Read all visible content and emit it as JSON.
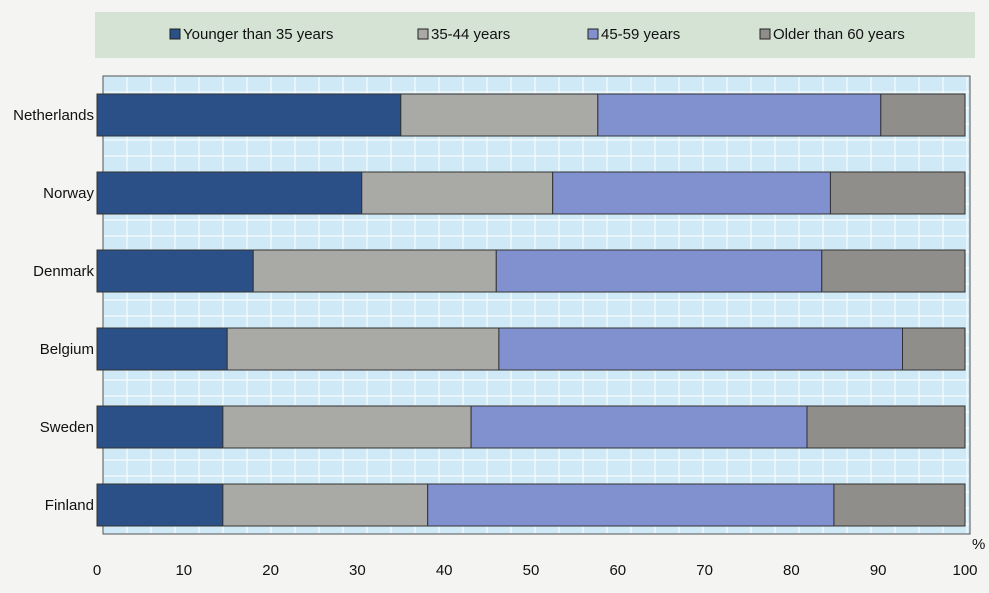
{
  "chart_data": {
    "type": "bar",
    "orientation": "horizontal",
    "stacked": true,
    "categories": [
      "Netherlands",
      "Norway",
      "Denmark",
      "Belgium",
      "Sweden",
      "Finland"
    ],
    "series": [
      {
        "name": "Younger than 35 years",
        "color": "#2b4f87",
        "values": [
          35,
          30.5,
          18,
          15,
          14.5,
          14.5
        ]
      },
      {
        "name": "35-44 years",
        "color": "#a9a9a6",
        "values": [
          22.7,
          22,
          28,
          31.3,
          28.6,
          23.6
        ]
      },
      {
        "name": "45-59 years",
        "color": "#8190cf",
        "values": [
          32.6,
          32,
          37.5,
          46.5,
          38.7,
          46.8
        ]
      },
      {
        "name": "Older than 60 years",
        "color": "#8f8e8b",
        "values": [
          9.7,
          15.5,
          16.5,
          7.2,
          18.2,
          15.1
        ]
      }
    ],
    "x_ticks": [
      "0",
      "10",
      "20",
      "30",
      "40",
      "50",
      "60",
      "70",
      "80",
      "90",
      "100"
    ],
    "xlim": [
      0,
      100
    ],
    "x_unit": "%",
    "grid": true,
    "legend_position": "top",
    "colors": {
      "plot_background": "#cfeaf6",
      "grid": "#ffffff",
      "legend_background": "#d4e3d3"
    }
  }
}
